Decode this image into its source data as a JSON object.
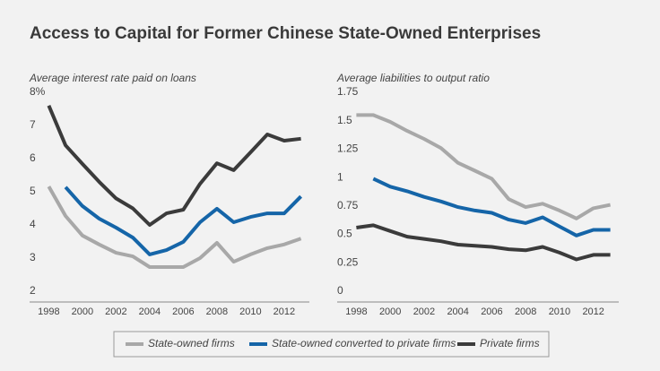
{
  "title": "Access to Capital for Former Chinese State-Owned Enterprises",
  "chart_data": [
    {
      "type": "line",
      "subtitle": "Average interest rate paid on loans",
      "x": [
        1998,
        1999,
        2000,
        2001,
        2002,
        2003,
        2004,
        2005,
        2006,
        2007,
        2008,
        2009,
        2010,
        2011,
        2012,
        2013
      ],
      "xlim": [
        1997.5,
        2013.5
      ],
      "xticks": [
        1998,
        2000,
        2002,
        2004,
        2006,
        2008,
        2010,
        2012
      ],
      "ylim": [
        2,
        8
      ],
      "yticks": [
        2,
        3,
        4,
        5,
        6,
        7,
        {
          "value": 8,
          "label": "8%"
        }
      ],
      "series": [
        {
          "name": "State-owned firms",
          "color": "#a8a8a8",
          "values": [
            5.16,
            4.27,
            3.68,
            3.41,
            3.16,
            3.05,
            2.73,
            2.73,
            2.73,
            3.0,
            3.46,
            2.89,
            3.11,
            3.3,
            3.41,
            3.59
          ]
        },
        {
          "name": "State-owned converted to private firms",
          "color": "#1565a8",
          "values": [
            null,
            5.14,
            4.57,
            4.19,
            3.92,
            3.62,
            3.11,
            3.24,
            3.49,
            4.08,
            4.49,
            4.08,
            4.24,
            4.35,
            4.35,
            4.86
          ]
        },
        {
          "name": "Private firms",
          "color": "#3b3b3b",
          "values": [
            7.6,
            6.4,
            5.84,
            5.3,
            4.8,
            4.5,
            4.0,
            4.35,
            4.46,
            5.24,
            5.86,
            5.65,
            6.19,
            6.73,
            6.54,
            6.6
          ]
        }
      ]
    },
    {
      "type": "line",
      "subtitle": "Average liabilities to output ratio",
      "x": [
        1998,
        1999,
        2000,
        2001,
        2002,
        2003,
        2004,
        2005,
        2006,
        2007,
        2008,
        2009,
        2010,
        2011,
        2012,
        2013
      ],
      "xlim": [
        1997.5,
        2013.5
      ],
      "xticks": [
        1998,
        2000,
        2002,
        2004,
        2006,
        2008,
        2010,
        2012
      ],
      "ylim": [
        0,
        1.75
      ],
      "yticks": [
        0,
        0.25,
        0.5,
        0.75,
        1,
        1.25,
        1.5,
        1.75
      ],
      "series": [
        {
          "color": "#a8a8a8",
          "values": [
            1.55,
            1.55,
            1.49,
            1.41,
            1.34,
            1.26,
            1.13,
            1.06,
            0.99,
            0.81,
            0.74,
            0.77,
            0.71,
            0.64,
            0.73,
            0.76
          ]
        },
        {
          "color": "#1565a8",
          "values": [
            null,
            0.99,
            0.92,
            0.88,
            0.83,
            0.79,
            0.74,
            0.71,
            0.69,
            0.63,
            0.6,
            0.65,
            0.57,
            0.49,
            0.54,
            0.54
          ]
        },
        {
          "color": "#3b3b3b",
          "values": [
            0.56,
            0.58,
            0.53,
            0.48,
            0.46,
            0.44,
            0.41,
            0.4,
            0.39,
            0.37,
            0.36,
            0.39,
            0.34,
            0.28,
            0.32,
            0.32
          ]
        }
      ]
    }
  ]
}
